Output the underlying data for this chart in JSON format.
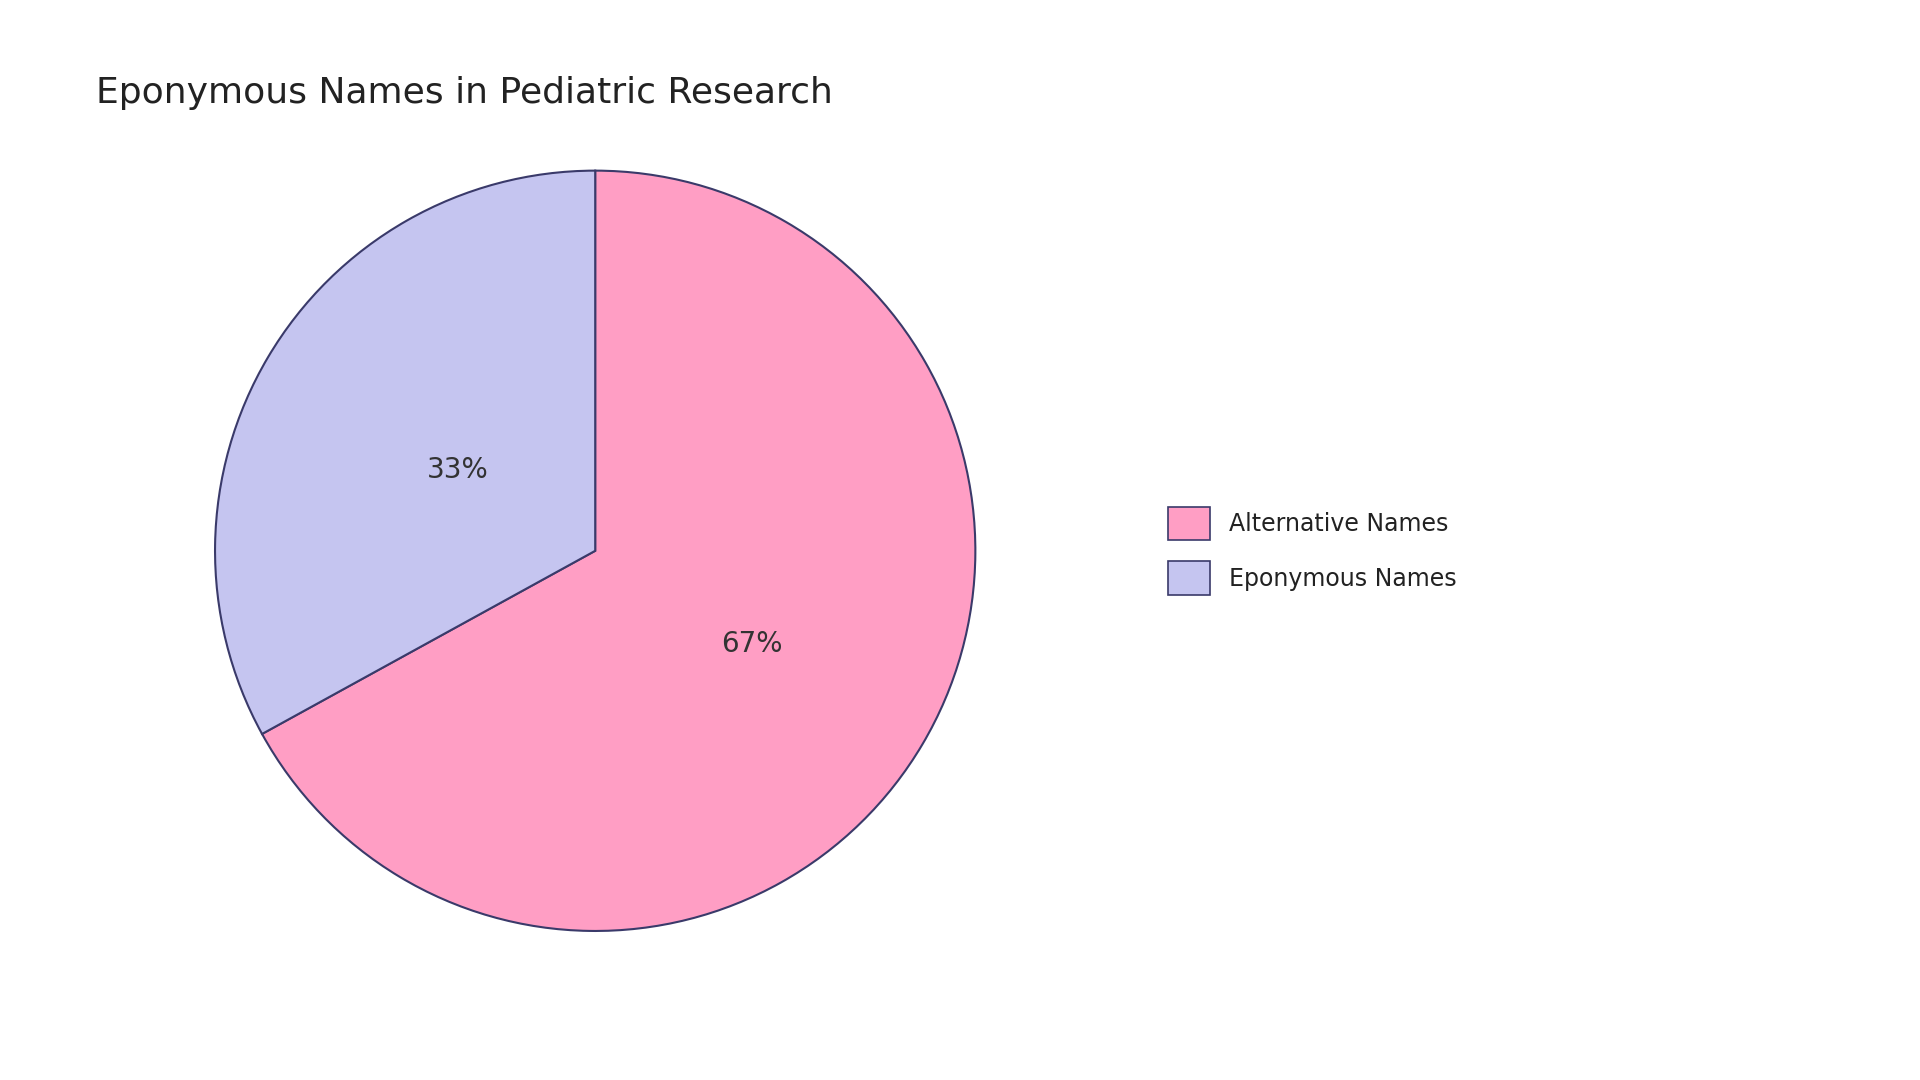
{
  "title": "Eponymous Names in Pediatric Research",
  "labels": [
    "Alternative Names",
    "Eponymous Names"
  ],
  "values": [
    67,
    33
  ],
  "colors": [
    "#FF9EC4",
    "#C5C5F0"
  ],
  "edge_color": "#3A3A6A",
  "edge_linewidth": 1.5,
  "pct_labels": [
    "67%",
    "33%"
  ],
  "pct_fontsize": 20,
  "title_fontsize": 26,
  "legend_fontsize": 17,
  "startangle": 90,
  "background_color": "#FFFFFF",
  "font_family": "DejaVu Sans"
}
